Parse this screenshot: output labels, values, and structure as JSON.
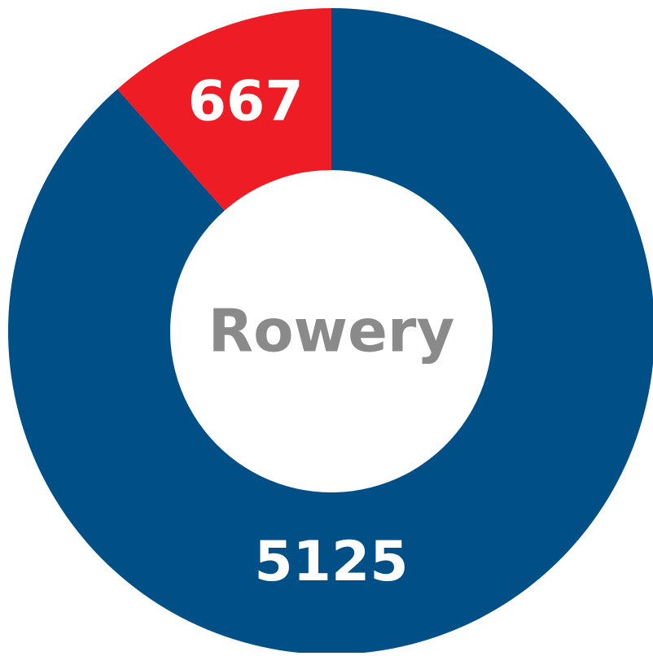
{
  "chart_data": {
    "type": "donut",
    "title": "Rowery",
    "categories": [
      null,
      null
    ],
    "values": [
      5125,
      667
    ],
    "colors": [
      "#005087",
      "#ee1c25"
    ]
  }
}
